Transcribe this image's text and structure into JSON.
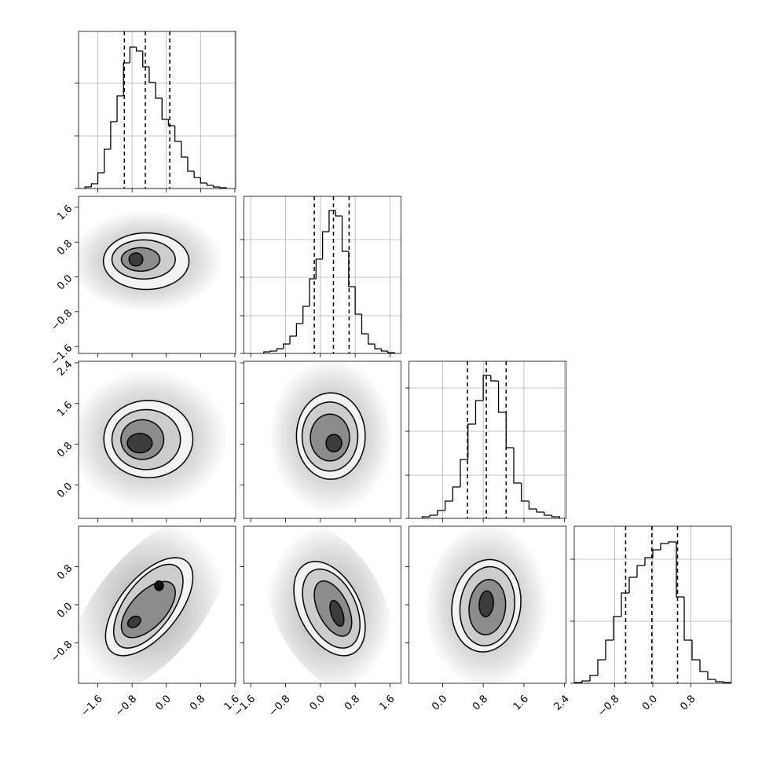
{
  "chart_data": {
    "type": "corner",
    "hist_ylim": [
      0,
      200
    ],
    "line_color": "#000000",
    "fill_colors": [
      "#f3f3f3",
      "#cdcdcd",
      "#8c8c8c",
      "#3c3c3c",
      "#111111"
    ],
    "cloud_color": "#9a9a9a",
    "params": [
      {
        "lim": [
          -2.05,
          1.62
        ],
        "ticks": [
          {
            "value": -1.6,
            "label": "−1.6"
          },
          {
            "value": -0.8,
            "label": "−0.8"
          },
          {
            "value": 0,
            "label": "0.0"
          },
          0.8,
          1.6
        ],
        "bins": [
          -1.9,
          -1.75,
          -1.6,
          -1.45,
          -1.3,
          -1.15,
          -1.0,
          -0.85,
          -0.7,
          -0.55,
          -0.4,
          -0.25,
          -0.1,
          0.05,
          0.2,
          0.35,
          0.5,
          0.65,
          0.8,
          0.95,
          1.1,
          1.25,
          1.4
        ],
        "counts": [
          2,
          6,
          20,
          50,
          85,
          118,
          160,
          180,
          175,
          155,
          135,
          115,
          88,
          80,
          60,
          40,
          22,
          14,
          7,
          4,
          2,
          1
        ],
        "quantiles": [
          -0.98,
          -0.49,
          0.08
        ],
        "hist_yticks": [
          0,
          67,
          134
        ]
      },
      {
        "lim": [
          -1.76,
          1.85
        ],
        "ticks": [
          {
            "value": -1.6,
            "label": "−1.6"
          },
          {
            "value": -0.8,
            "label": "−0.8"
          },
          {
            "value": 0,
            "label": "0.0"
          },
          0.8,
          1.6
        ],
        "bins": [
          -1.3,
          -1.15,
          -1.0,
          -0.85,
          -0.7,
          -0.55,
          -0.4,
          -0.25,
          -0.1,
          0.05,
          0.2,
          0.35,
          0.5,
          0.65,
          0.8,
          0.95,
          1.1,
          1.25,
          1.4,
          1.55,
          1.7
        ],
        "counts": [
          2,
          3,
          6,
          12,
          22,
          38,
          60,
          95,
          120,
          155,
          182,
          175,
          130,
          85,
          50,
          25,
          12,
          6,
          3,
          1
        ],
        "quantiles": [
          -0.14,
          0.3,
          0.66
        ],
        "hist_yticks": [
          0,
          48,
          97,
          145
        ]
      },
      {
        "lim": [
          -0.66,
          2.43
        ],
        "ticks": [
          {
            "value": 0,
            "label": "0.0"
          },
          0.8,
          1.6,
          2.4
        ],
        "bins": [
          -0.4,
          -0.25,
          -0.1,
          0.05,
          0.2,
          0.35,
          0.5,
          0.65,
          0.8,
          0.95,
          1.1,
          1.25,
          1.4,
          1.55,
          1.7,
          1.85,
          2.0,
          2.15,
          2.3
        ],
        "counts": [
          2,
          4,
          10,
          22,
          40,
          75,
          120,
          150,
          182,
          175,
          135,
          90,
          45,
          22,
          12,
          8,
          4,
          2
        ],
        "quantiles": [
          0.49,
          0.86,
          1.25
        ],
        "hist_yticks": [
          0,
          55,
          111,
          166
        ]
      },
      {
        "lim": [
          -1.65,
          1.65
        ],
        "ticks": [
          {
            "value": -0.8,
            "label": "−0.8"
          },
          {
            "value": 0,
            "label": "0.0"
          },
          0.8
        ],
        "bins": [
          -1.65,
          -1.485,
          -1.32,
          -1.155,
          -0.99,
          -0.825,
          -0.66,
          -0.495,
          -0.33,
          -0.165,
          0,
          0.165,
          0.33,
          0.495,
          0.66,
          0.825,
          0.99,
          1.155,
          1.32,
          1.485,
          1.65
        ],
        "counts": [
          1,
          3,
          10,
          30,
          55,
          85,
          115,
          135,
          150,
          160,
          170,
          178,
          180,
          110,
          55,
          30,
          15,
          5,
          2,
          1
        ],
        "quantiles": [
          -0.57,
          -0.02,
          0.52
        ],
        "hist_yticks": [
          0,
          79,
          158
        ]
      }
    ],
    "pairs": [
      [
        {
          "contours": [
            {
              "x": -0.47,
              "y": 0.36,
              "sx": 1.0,
              "sy": 0.65,
              "rho": 0.0
            },
            {
              "x": -0.53,
              "y": 0.4,
              "sx": 0.74,
              "sy": 0.45,
              "rho": 0.0
            },
            {
              "x": -0.6,
              "y": 0.4,
              "sx": 0.45,
              "sy": 0.27,
              "rho": 0.0
            },
            {
              "x": -0.71,
              "y": 0.4,
              "sx": 0.16,
              "sy": 0.15,
              "rho": 0.0
            }
          ]
        }
      ],
      [
        {
          "contours": [
            {
              "x": -0.42,
              "y": 0.9,
              "sx": 1.04,
              "sy": 0.76,
              "rho": 0.0
            },
            {
              "x": -0.47,
              "y": 0.89,
              "sx": 0.8,
              "sy": 0.59,
              "rho": 0.0
            },
            {
              "x": -0.56,
              "y": 0.89,
              "sx": 0.5,
              "sy": 0.39,
              "rho": 0.0
            },
            {
              "x": -0.62,
              "y": 0.82,
              "sx": 0.29,
              "sy": 0.19,
              "rho": 0.0
            }
          ]
        },
        {
          "contours": [
            {
              "x": 0.24,
              "y": 0.96,
              "sx": 0.79,
              "sy": 0.85,
              "rho": 0.0
            },
            {
              "x": 0.22,
              "y": 0.95,
              "sx": 0.64,
              "sy": 0.68,
              "rho": 0.0
            },
            {
              "x": 0.22,
              "y": 0.93,
              "sx": 0.45,
              "sy": 0.46,
              "rho": 0.0
            },
            {
              "x": 0.31,
              "y": 0.82,
              "sx": 0.18,
              "sy": 0.17,
              "rho": 0.0
            }
          ]
        }
      ],
      [
        {
          "contours": [
            {
              "x": -0.4,
              "y": -0.04,
              "sx": 1.02,
              "sy": 1.03,
              "rho": 0.6
            },
            {
              "x": -0.42,
              "y": -0.03,
              "sx": 0.81,
              "sy": 0.88,
              "rho": 0.6
            },
            {
              "x": -0.42,
              "y": -0.1,
              "sx": 0.63,
              "sy": 0.59,
              "rho": 0.6
            },
            {
              "x": -0.75,
              "y": -0.36,
              "sx": 0.15,
              "sy": 0.12,
              "rho": 0.3
            },
            {
              "x": -0.17,
              "y": 0.4,
              "sx": 0.1,
              "sy": 0.1,
              "rho": 0.0
            }
          ]
        },
        {
          "contours": [
            {
              "x": 0.21,
              "y": -0.08,
              "sx": 0.82,
              "sy": 0.99,
              "rho": -0.4
            },
            {
              "x": 0.25,
              "y": -0.08,
              "sx": 0.66,
              "sy": 0.83,
              "rho": -0.4
            },
            {
              "x": 0.29,
              "y": -0.08,
              "sx": 0.43,
              "sy": 0.58,
              "rho": -0.5
            },
            {
              "x": 0.38,
              "y": -0.18,
              "sx": 0.16,
              "sy": 0.27,
              "rho": -0.5
            }
          ]
        },
        {
          "contours": [
            {
              "x": 0.86,
              "y": -0.02,
              "sx": 0.68,
              "sy": 0.97,
              "rho": 0.1
            },
            {
              "x": 0.88,
              "y": -0.03,
              "sx": 0.54,
              "sy": 0.83,
              "rho": 0.1
            },
            {
              "x": 0.88,
              "y": -0.05,
              "sx": 0.36,
              "sy": 0.58,
              "rho": 0.1
            },
            {
              "x": 0.86,
              "y": 0.02,
              "sx": 0.14,
              "sy": 0.27,
              "rho": 0.1
            }
          ]
        }
      ]
    ]
  }
}
